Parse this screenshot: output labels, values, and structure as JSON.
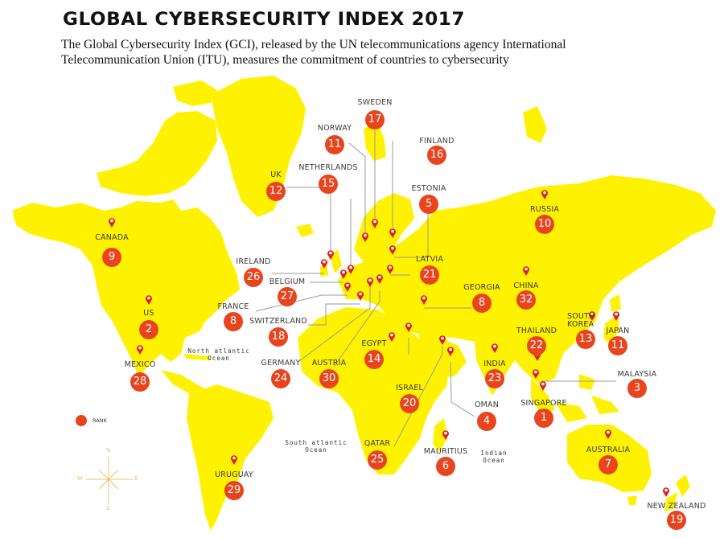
{
  "header": {
    "title": "GLOBAL CYBERSECURITY INDEX 2017",
    "subtitle": "The Global Cybersecurity Index (GCI), released by the UN telecommunications agency International Telecommunication Union (ITU), measures the commitment of countries to cybersecurity"
  },
  "colors": {
    "land": "#fff200",
    "rank_circle": "#e8441d",
    "pin": "#e01e1e",
    "leader_line": "#9a9a9a",
    "compass": "#e9c46a"
  },
  "legend": {
    "label": "RANK",
    "icon": "rank-circle-icon"
  },
  "compass": {
    "n": "N",
    "s": "S",
    "e": "E",
    "w": "W"
  },
  "oceans": [
    {
      "name": "North atlantic",
      "line2": "Ocean"
    },
    {
      "name": "South atlantic",
      "line2": "Ocean"
    },
    {
      "name": "Indian",
      "line2": "Ocean"
    }
  ],
  "countries": [
    {
      "name": "CANADA",
      "rank": "9"
    },
    {
      "name": "US",
      "rank": "2"
    },
    {
      "name": "MEXICO",
      "rank": "28"
    },
    {
      "name": "UK",
      "rank": "12"
    },
    {
      "name": "NORWAY",
      "rank": "11"
    },
    {
      "name": "NETHERLANDS",
      "rank": "15"
    },
    {
      "name": "SWEDEN",
      "rank": "17"
    },
    {
      "name": "FINLAND",
      "rank": "16"
    },
    {
      "name": "ESTONIA",
      "rank": "5"
    },
    {
      "name": "RUSSIA",
      "rank": "10"
    },
    {
      "name": "IRELAND",
      "rank": "26"
    },
    {
      "name": "BELGIUM",
      "rank": "27"
    },
    {
      "name": "FRANCE",
      "rank": "8"
    },
    {
      "name": "SWITZERLAND",
      "rank": "18"
    },
    {
      "name": "GERMANY",
      "rank": "24"
    },
    {
      "name": "AUSTRIA",
      "rank": "30"
    },
    {
      "name": "LATVIA",
      "rank": "21"
    },
    {
      "name": "GEORGIA",
      "rank": "8"
    },
    {
      "name": "CHINA",
      "rank": "32"
    },
    {
      "name": "EGYPT",
      "rank": "14"
    },
    {
      "name": "ISRAEL",
      "rank": "20"
    },
    {
      "name": "OMAN",
      "rank": "4"
    },
    {
      "name": "QATAR",
      "rank": "25"
    },
    {
      "name": "MAURITIUS",
      "rank": "6"
    },
    {
      "name": "INDIA",
      "rank": "23"
    },
    {
      "name": "THAILAND",
      "rank": "22"
    },
    {
      "name": "SOUTH KOREA",
      "rank": "13"
    },
    {
      "name": "JAPAN",
      "rank": "11"
    },
    {
      "name": "MALAYSIA",
      "rank": "3"
    },
    {
      "name": "SINGAPORE",
      "rank": "1"
    },
    {
      "name": "AUSTRALIA",
      "rank": "7"
    },
    {
      "name": "NEW ZEALAND",
      "rank": "19"
    },
    {
      "name": "URUGUAY",
      "rank": "29"
    }
  ]
}
